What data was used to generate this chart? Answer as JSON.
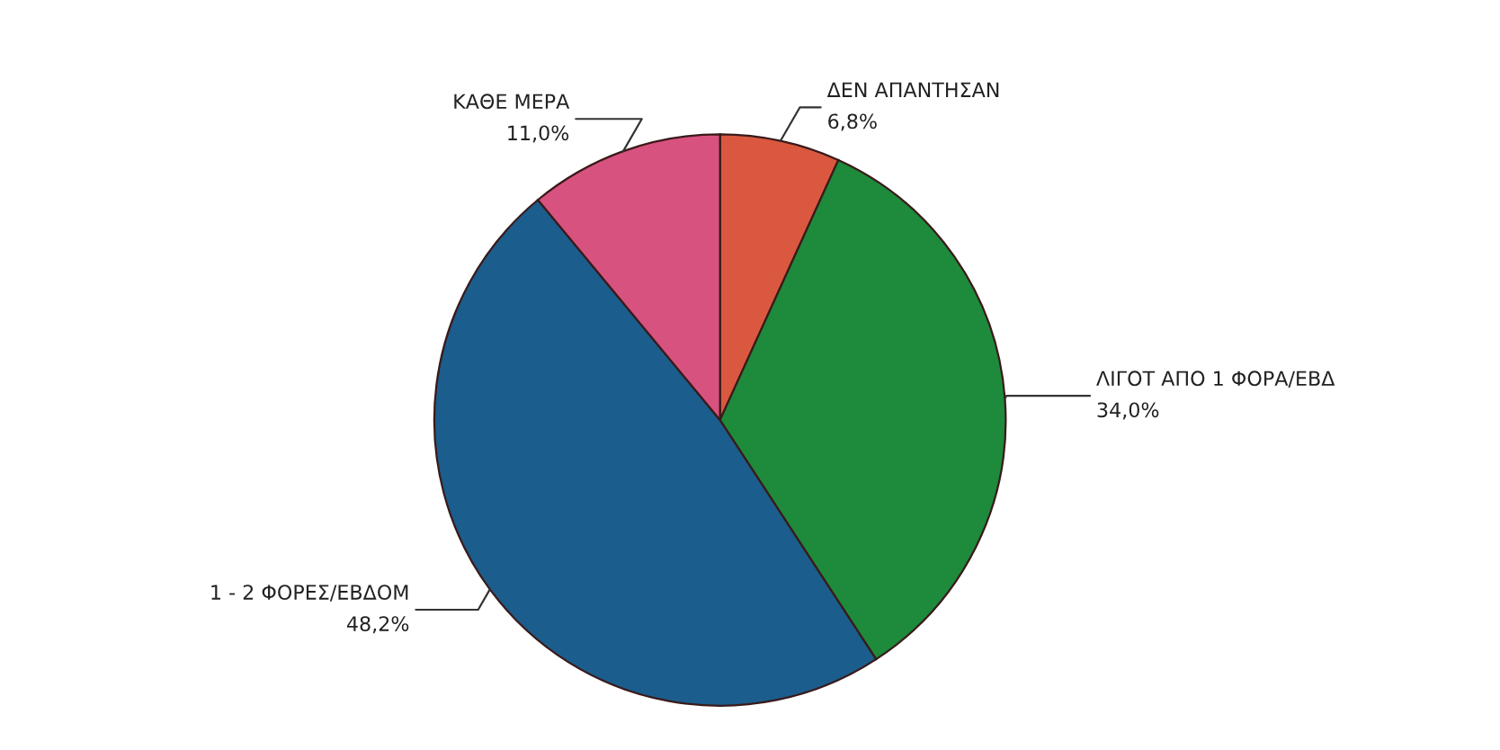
{
  "chart_data": {
    "type": "pie",
    "categories": [
      "ΔΕΝ ΑΠΑΝΤΗΣΑΝ",
      "ΛΙΓΟΤ ΑΠΟ 1 ΦΟΡΑ/ΕΒΔ",
      "1 - 2 ΦΟΡΕΣ/ΕΒΔΟΜ",
      "ΚΑΘΕ ΜΕΡΑ"
    ],
    "values": [
      6.8,
      34.0,
      48.2,
      11.0
    ],
    "value_labels": [
      "6,8%",
      "34,0%",
      "48,2%",
      "11,0%"
    ],
    "colors": [
      "#d9583f",
      "#1e8a3c",
      "#1b5d8c",
      "#d8527f"
    ]
  }
}
